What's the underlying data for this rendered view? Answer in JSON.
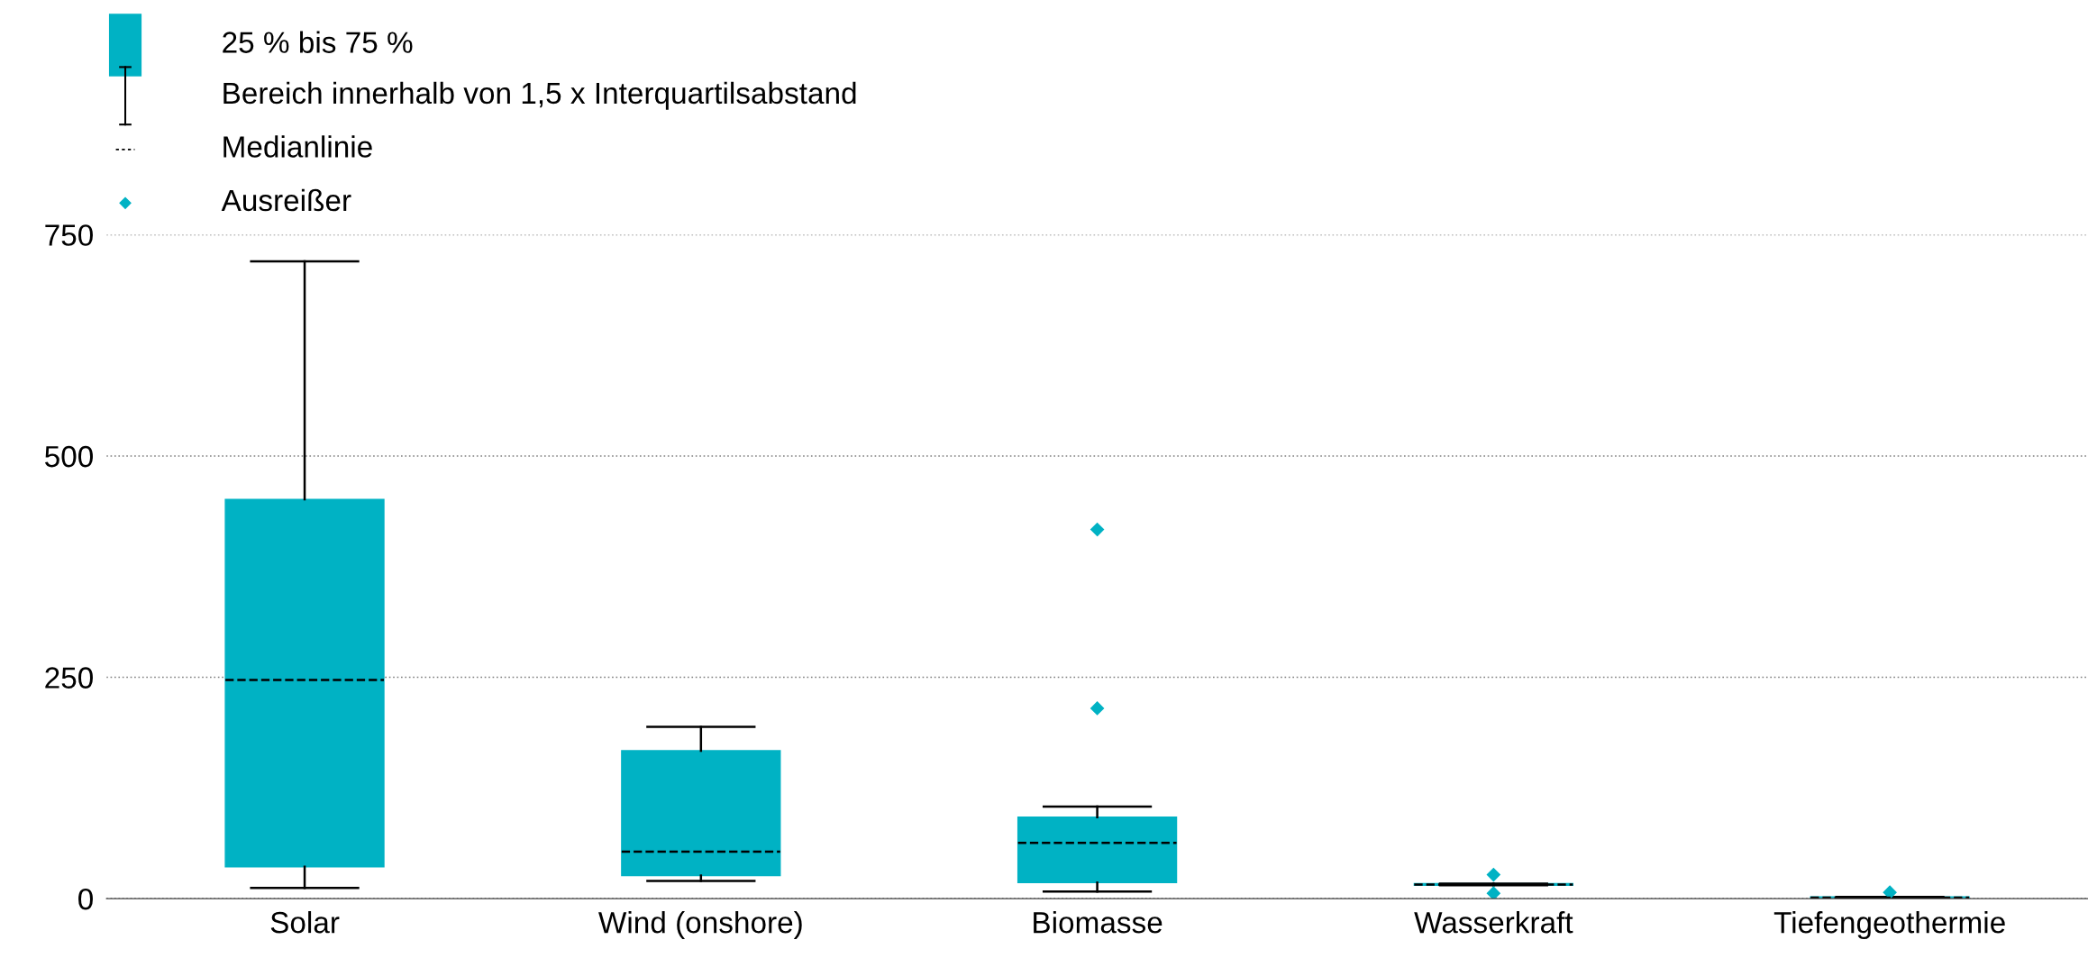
{
  "chart_data": {
    "type": "box",
    "color": "#00b2c4",
    "categories": [
      "Solar",
      "Wind (onshore)",
      "Biomasse",
      "Wasserkraft",
      "Tiefengeothermie"
    ],
    "boxes": [
      {
        "low": 12,
        "q1": 36,
        "median": 247,
        "q3": 451,
        "high": 720
      },
      {
        "low": 20,
        "q1": 26,
        "median": 53,
        "q3": 167,
        "high": 194
      },
      {
        "low": 8,
        "q1": 18,
        "median": 63,
        "q3": 92,
        "high": 104,
        "outliers": [
          215,
          417
        ]
      },
      {
        "low": 15,
        "q1": 15,
        "median": 16,
        "q3": 17,
        "high": 17,
        "outliers": [
          6,
          27
        ]
      },
      {
        "low": 0,
        "q1": 1,
        "median": 1,
        "q3": 2,
        "high": 2,
        "outliers": [
          7
        ]
      }
    ],
    "ylim": [
      0,
      750
    ],
    "yticks": [
      0,
      250,
      500,
      750
    ],
    "grid": "y",
    "annotations": [
      "25 % bis 75 %",
      "Bereich innerhalb von 1,5 x Interquartilsabstand",
      "Medianlinie",
      "Ausreißer"
    ]
  }
}
